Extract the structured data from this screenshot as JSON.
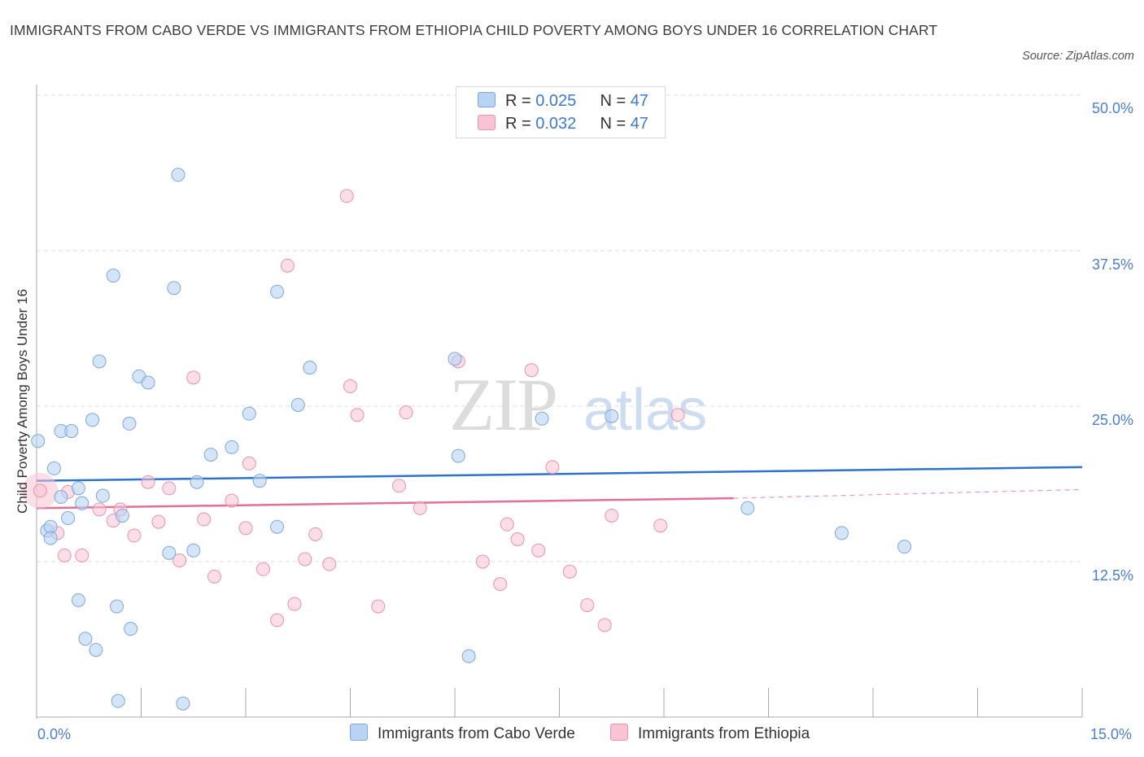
{
  "title": "IMMIGRANTS FROM CABO VERDE VS IMMIGRANTS FROM ETHIOPIA CHILD POVERTY AMONG BOYS UNDER 16 CORRELATION CHART",
  "source": "Source: ZipAtlas.com",
  "watermark": {
    "zip": "ZIP",
    "atlas": "atlas"
  },
  "legend": {
    "rows": [
      {
        "r_label": "R = ",
        "r_value": "0.025",
        "n_label": "N = ",
        "n_value": "47"
      },
      {
        "r_label": "R = ",
        "r_value": "0.032",
        "n_label": "N = ",
        "n_value": "47"
      }
    ]
  },
  "colors": {
    "blue_fill": "#b9d3f3",
    "blue_stroke": "#7fa6db",
    "blue_line": "#2f72cc",
    "pink_fill": "#f8c3d2",
    "pink_stroke": "#e793ad",
    "pink_line": "#e36f96",
    "tick_text": "#4a7fd0",
    "grid": "#dcdcdc"
  },
  "chart_data": {
    "type": "scatter",
    "title": "IMMIGRANTS FROM CABO VERDE VS IMMIGRANTS FROM ETHIOPIA CHILD POVERTY AMONG BOYS UNDER 16 CORRELATION CHART",
    "xlabel": "",
    "ylabel": "Child Poverty Among Boys Under 16",
    "xlim": [
      0,
      15
    ],
    "ylim": [
      0,
      50
    ],
    "x_ticks": [
      "0.0%",
      "15.0%"
    ],
    "y_ticks": [
      "12.5%",
      "25.0%",
      "37.5%",
      "50.0%"
    ],
    "y_tick_values": [
      12.5,
      25.0,
      37.5,
      50.0
    ],
    "grid": true,
    "legend_position": "top-center",
    "series": [
      {
        "name": "Immigrants from Cabo Verde",
        "color": "blue",
        "r": 0.025,
        "n": 47,
        "trend": {
          "x": [
            0,
            15
          ],
          "y": [
            19.0,
            20.1
          ]
        },
        "points": [
          [
            0.02,
            22.2
          ],
          [
            0.15,
            15.0
          ],
          [
            0.2,
            15.3
          ],
          [
            0.2,
            14.4
          ],
          [
            0.25,
            20.0
          ],
          [
            0.35,
            17.7
          ],
          [
            0.35,
            23.0
          ],
          [
            0.45,
            16.0
          ],
          [
            0.5,
            23.0
          ],
          [
            0.6,
            18.4
          ],
          [
            0.6,
            9.4
          ],
          [
            0.65,
            17.2
          ],
          [
            0.7,
            6.3
          ],
          [
            0.8,
            23.9
          ],
          [
            0.85,
            5.4
          ],
          [
            0.9,
            28.6
          ],
          [
            0.95,
            17.8
          ],
          [
            1.1,
            35.5
          ],
          [
            1.15,
            8.9
          ],
          [
            1.17,
            1.3
          ],
          [
            1.23,
            16.2
          ],
          [
            1.33,
            23.6
          ],
          [
            1.35,
            7.1
          ],
          [
            1.47,
            27.4
          ],
          [
            1.6,
            26.9
          ],
          [
            1.9,
            13.2
          ],
          [
            1.97,
            34.5
          ],
          [
            2.03,
            43.6
          ],
          [
            2.1,
            1.1
          ],
          [
            2.25,
            13.4
          ],
          [
            2.3,
            18.9
          ],
          [
            2.5,
            21.1
          ],
          [
            2.8,
            21.7
          ],
          [
            3.05,
            24.4
          ],
          [
            3.2,
            19.0
          ],
          [
            3.45,
            34.2
          ],
          [
            3.45,
            15.3
          ],
          [
            3.75,
            25.1
          ],
          [
            3.92,
            28.1
          ],
          [
            6.0,
            28.8
          ],
          [
            6.05,
            21.0
          ],
          [
            6.2,
            4.9
          ],
          [
            7.25,
            24.0
          ],
          [
            8.25,
            24.2
          ],
          [
            10.2,
            16.8
          ],
          [
            11.55,
            14.8
          ],
          [
            12.45,
            13.7
          ]
        ]
      },
      {
        "name": "Immigrants from Ethiopia",
        "color": "pink",
        "r": 0.032,
        "n": 47,
        "trend": {
          "x": [
            0,
            10.0
          ],
          "y": [
            16.8,
            17.6
          ]
        },
        "trend_dashed": {
          "x": [
            10.0,
            15
          ],
          "y": [
            17.6,
            18.3
          ]
        },
        "points": [
          [
            0.05,
            18.2
          ],
          [
            0.3,
            14.8
          ],
          [
            0.4,
            13.0
          ],
          [
            0.45,
            18.1
          ],
          [
            0.65,
            13.0
          ],
          [
            0.9,
            16.7
          ],
          [
            1.1,
            15.8
          ],
          [
            1.2,
            16.7
          ],
          [
            1.4,
            14.6
          ],
          [
            1.6,
            18.9
          ],
          [
            1.75,
            15.7
          ],
          [
            1.9,
            18.4
          ],
          [
            2.05,
            12.6
          ],
          [
            2.25,
            27.3
          ],
          [
            2.4,
            15.9
          ],
          [
            2.55,
            11.3
          ],
          [
            2.8,
            17.4
          ],
          [
            3.0,
            15.2
          ],
          [
            3.05,
            20.4
          ],
          [
            3.25,
            11.9
          ],
          [
            3.45,
            7.8
          ],
          [
            3.6,
            36.3
          ],
          [
            3.7,
            9.1
          ],
          [
            3.85,
            12.7
          ],
          [
            4.0,
            14.7
          ],
          [
            4.2,
            12.3
          ],
          [
            4.45,
            41.9
          ],
          [
            4.5,
            26.6
          ],
          [
            4.6,
            24.3
          ],
          [
            4.9,
            8.9
          ],
          [
            5.2,
            18.6
          ],
          [
            5.3,
            24.5
          ],
          [
            5.5,
            16.8
          ],
          [
            6.05,
            28.6
          ],
          [
            6.4,
            12.5
          ],
          [
            6.65,
            10.7
          ],
          [
            6.75,
            15.5
          ],
          [
            6.9,
            14.3
          ],
          [
            7.1,
            27.9
          ],
          [
            7.2,
            13.4
          ],
          [
            7.4,
            20.1
          ],
          [
            7.65,
            11.7
          ],
          [
            7.9,
            9.0
          ],
          [
            8.15,
            7.4
          ],
          [
            8.25,
            16.2
          ],
          [
            8.95,
            15.4
          ],
          [
            9.2,
            24.3
          ]
        ]
      }
    ]
  },
  "bottom_legend": [
    "Immigrants from Cabo Verde",
    "Immigrants from Ethiopia"
  ]
}
